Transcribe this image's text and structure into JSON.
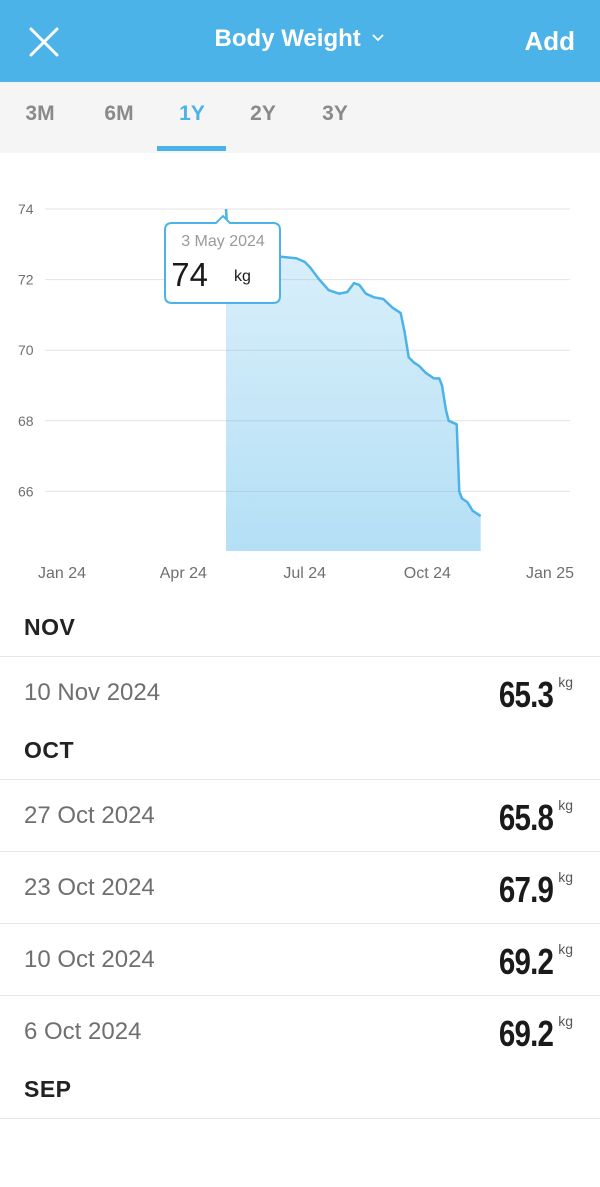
{
  "header": {
    "title": "Body Weight",
    "add_label": "Add",
    "close_icon": "close-icon",
    "chevron_icon": "chevron-down-icon",
    "color": "#4cb3e8"
  },
  "tabs": [
    {
      "label": "3M",
      "active": false
    },
    {
      "label": "6M",
      "active": false
    },
    {
      "label": "1Y",
      "active": true
    },
    {
      "label": "2Y",
      "active": false
    },
    {
      "label": "3Y",
      "active": false
    }
  ],
  "tooltip": {
    "date": "3 May 2024",
    "value": "74",
    "unit": "kg"
  },
  "chart_data": {
    "type": "area",
    "x_tick_labels": [
      "Jan 24",
      "Apr 24",
      "Jul 24",
      "Oct 24",
      "Jan 25"
    ],
    "x_ticks": [
      "2024-01-01",
      "2024-04-01",
      "2024-07-01",
      "2024-10-01",
      "2025-01-01"
    ],
    "y_ticks": [
      74,
      72,
      70,
      68,
      66
    ],
    "ylim": [
      64.5,
      74.2
    ],
    "grid": true,
    "color": "#4cb3e8",
    "points": [
      {
        "x": "2024-05-03",
        "y": 74.0
      },
      {
        "x": "2024-05-05",
        "y": 72.75
      },
      {
        "x": "2024-05-31",
        "y": 72.7
      },
      {
        "x": "2024-06-25",
        "y": 72.6
      },
      {
        "x": "2024-07-01",
        "y": 72.5
      },
      {
        "x": "2024-07-05",
        "y": 72.35
      },
      {
        "x": "2024-07-12",
        "y": 72.0
      },
      {
        "x": "2024-07-19",
        "y": 71.7
      },
      {
        "x": "2024-07-27",
        "y": 71.6
      },
      {
        "x": "2024-08-02",
        "y": 71.65
      },
      {
        "x": "2024-08-07",
        "y": 71.9
      },
      {
        "x": "2024-08-11",
        "y": 71.85
      },
      {
        "x": "2024-08-16",
        "y": 71.6
      },
      {
        "x": "2024-08-22",
        "y": 71.5
      },
      {
        "x": "2024-08-29",
        "y": 71.45
      },
      {
        "x": "2024-09-05",
        "y": 71.2
      },
      {
        "x": "2024-09-11",
        "y": 71.05
      },
      {
        "x": "2024-09-14",
        "y": 70.5
      },
      {
        "x": "2024-09-17",
        "y": 69.8
      },
      {
        "x": "2024-09-21",
        "y": 69.65
      },
      {
        "x": "2024-09-25",
        "y": 69.55
      },
      {
        "x": "2024-09-30",
        "y": 69.35
      },
      {
        "x": "2024-10-06",
        "y": 69.2
      },
      {
        "x": "2024-10-10",
        "y": 69.2
      },
      {
        "x": "2024-10-12",
        "y": 69.0
      },
      {
        "x": "2024-10-15",
        "y": 68.3
      },
      {
        "x": "2024-10-17",
        "y": 68.0
      },
      {
        "x": "2024-10-23",
        "y": 67.9
      },
      {
        "x": "2024-10-25",
        "y": 66.0
      },
      {
        "x": "2024-10-27",
        "y": 65.8
      },
      {
        "x": "2024-10-31",
        "y": 65.7
      },
      {
        "x": "2024-11-04",
        "y": 65.45
      },
      {
        "x": "2024-11-10",
        "y": 65.3
      }
    ]
  },
  "sections": [
    {
      "title": "NOV",
      "entries": [
        {
          "date": "10 Nov 2024",
          "value": "65.3",
          "unit": "kg"
        }
      ]
    },
    {
      "title": "OCT",
      "entries": [
        {
          "date": "27 Oct 2024",
          "value": "65.8",
          "unit": "kg"
        },
        {
          "date": "23 Oct 2024",
          "value": "67.9",
          "unit": "kg"
        },
        {
          "date": "10 Oct 2024",
          "value": "69.2",
          "unit": "kg"
        },
        {
          "date": "6 Oct 2024",
          "value": "69.2",
          "unit": "kg"
        }
      ]
    },
    {
      "title": "SEP",
      "entries": []
    }
  ]
}
